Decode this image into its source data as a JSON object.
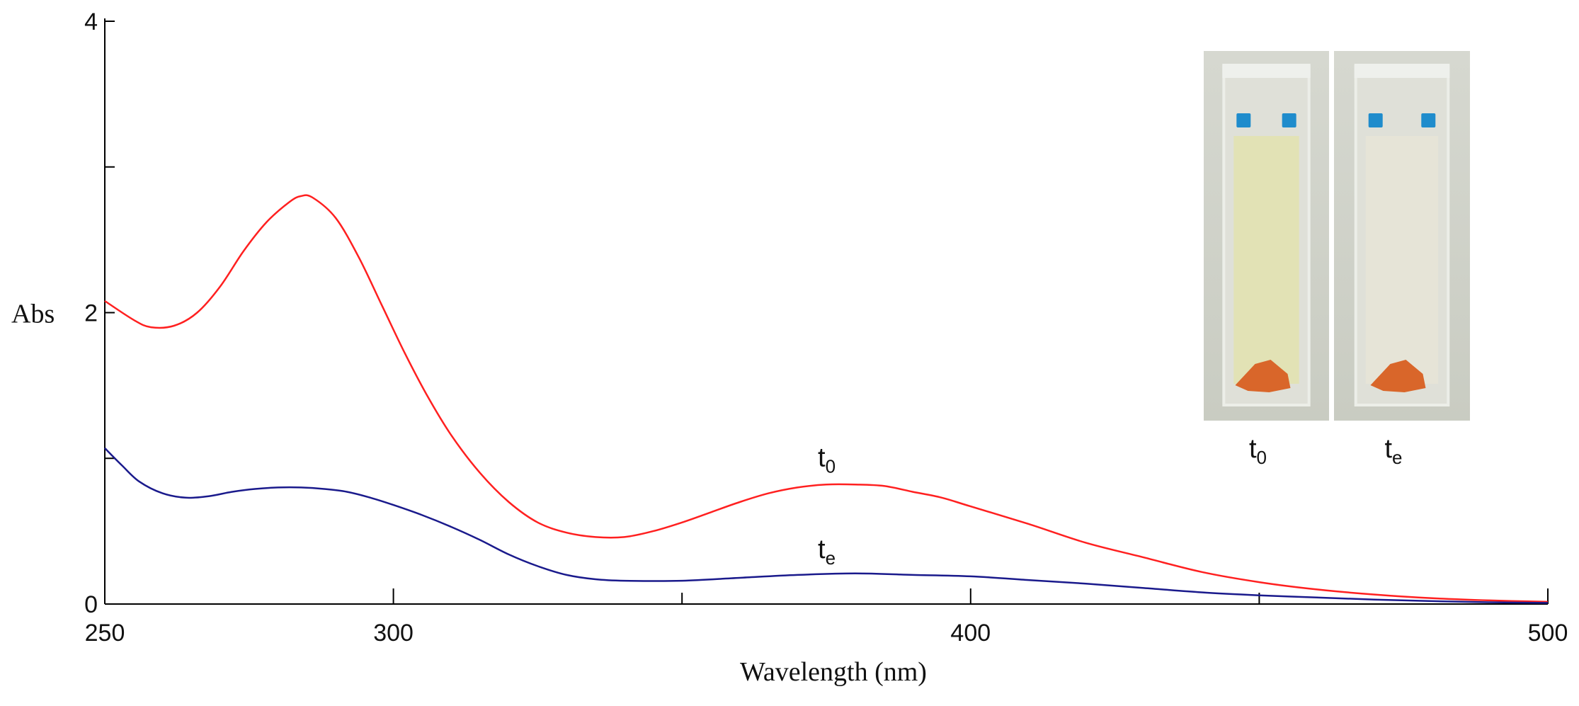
{
  "chart_data": {
    "type": "line",
    "xlabel": "Wavelength (nm)",
    "ylabel": "Abs",
    "xlim": [
      250,
      500
    ],
    "ylim": [
      0,
      4
    ],
    "x_ticks_labeled": [
      "250",
      "300",
      "400",
      "500"
    ],
    "x_ticks_minor": [
      350,
      450
    ],
    "y_ticks_labeled": [
      "0",
      "2",
      "4"
    ],
    "y_ticks_minor": [
      1,
      3
    ],
    "grid": false,
    "series": [
      {
        "name": "t0",
        "label_main": "t",
        "label_sub": "0",
        "color": "#ff2020",
        "x": [
          250,
          255,
          258,
          262,
          266,
          270,
          274,
          278,
          282,
          284,
          286,
          290,
          294,
          298,
          302,
          306,
          310,
          315,
          320,
          325,
          330,
          335,
          340,
          345,
          350,
          355,
          360,
          365,
          370,
          375,
          380,
          385,
          390,
          395,
          400,
          410,
          420,
          430,
          440,
          450,
          460,
          470,
          480,
          490,
          500
        ],
        "y": [
          2.08,
          1.95,
          1.9,
          1.91,
          2.0,
          2.18,
          2.42,
          2.62,
          2.76,
          2.8,
          2.79,
          2.65,
          2.38,
          2.05,
          1.72,
          1.42,
          1.16,
          0.9,
          0.7,
          0.56,
          0.49,
          0.46,
          0.46,
          0.5,
          0.56,
          0.63,
          0.7,
          0.76,
          0.8,
          0.82,
          0.82,
          0.81,
          0.77,
          0.73,
          0.67,
          0.55,
          0.42,
          0.32,
          0.22,
          0.15,
          0.1,
          0.065,
          0.04,
          0.025,
          0.015
        ]
      },
      {
        "name": "te",
        "label_main": "t",
        "label_sub": "e",
        "color": "#1a1a8c",
        "x": [
          250,
          253,
          256,
          260,
          264,
          268,
          272,
          276,
          280,
          284,
          288,
          292,
          296,
          300,
          305,
          310,
          315,
          320,
          325,
          330,
          335,
          340,
          350,
          360,
          370,
          380,
          390,
          400,
          410,
          420,
          430,
          440,
          450,
          460,
          470,
          480,
          490,
          500
        ],
        "y": [
          1.07,
          0.95,
          0.84,
          0.76,
          0.73,
          0.74,
          0.77,
          0.79,
          0.8,
          0.8,
          0.79,
          0.77,
          0.73,
          0.68,
          0.61,
          0.53,
          0.44,
          0.34,
          0.26,
          0.2,
          0.17,
          0.16,
          0.16,
          0.18,
          0.2,
          0.21,
          0.2,
          0.19,
          0.165,
          0.14,
          0.11,
          0.08,
          0.06,
          0.045,
          0.03,
          0.02,
          0.012,
          0.008
        ]
      }
    ],
    "inset": {
      "position": "top-right",
      "panels": [
        {
          "label_main": "t",
          "label_sub": "0",
          "liquid_color": "#e2e1b3"
        },
        {
          "label_main": "t",
          "label_sub": "e",
          "liquid_color": "#e6e4d7"
        }
      ]
    }
  }
}
